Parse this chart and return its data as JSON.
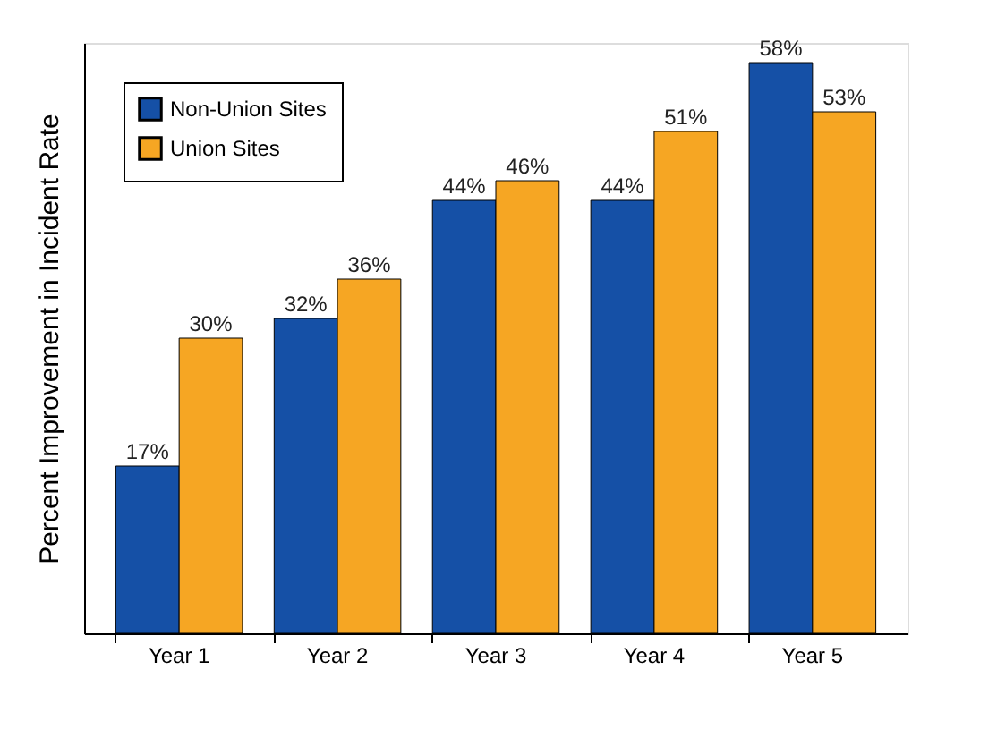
{
  "chart_data": {
    "type": "bar",
    "ylabel": "Percent Improvement in Incident Rate",
    "categories": [
      "Year 1",
      "Year 2",
      "Year 3",
      "Year 4",
      "Year 5"
    ],
    "series": [
      {
        "name": "Non-Union Sites",
        "color": "#1550a6",
        "values": [
          17,
          32,
          44,
          44,
          58
        ],
        "value_labels": [
          "17%",
          "32%",
          "44%",
          "44%",
          "58%"
        ]
      },
      {
        "name": "Union Sites",
        "color": "#f6a623",
        "values": [
          30,
          36,
          46,
          51,
          53
        ],
        "value_labels": [
          "30%",
          "36%",
          "46%",
          "51%",
          "53%"
        ]
      }
    ],
    "legend": "top left",
    "tick_labels": "x",
    "grid": false
  }
}
